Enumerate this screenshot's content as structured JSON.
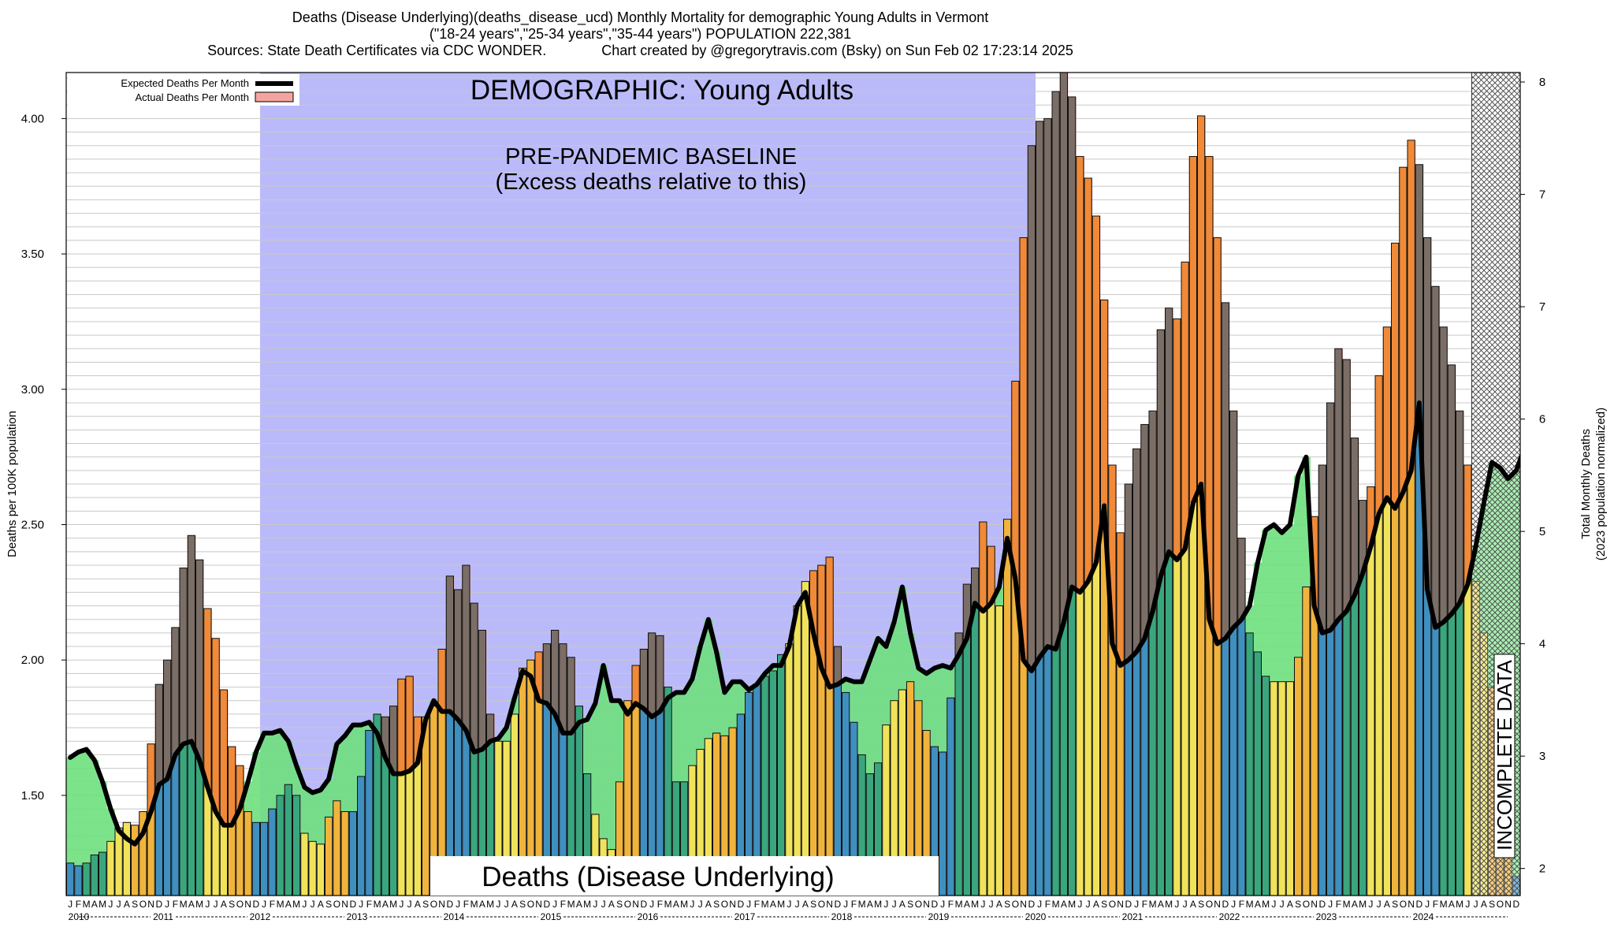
{
  "chart_data": {
    "type": "bar",
    "title": "Deaths (Disease Underlying)(deaths_disease_ucd) Monthly Mortality for demographic Young Adults in Vermont",
    "subtitle": "(\"18-24 years\",\"25-34 years\",\"35-44 years\") POPULATION 222,381",
    "sources": "Sources: State Death Certificates via CDC WONDER.",
    "credit": "Chart created by @gregorytravis.com (Bsky) on Sun Feb 02 17:23:14 2025",
    "ylabel": "Deaths per 100K population",
    "ylabel_right_line1": "Total Monthly Deaths",
    "ylabel_right_line2": "(2023 population normalized)",
    "ylim": [
      1.13,
      4.17
    ],
    "y_ticks": [
      "1.50",
      "2.00",
      "2.50",
      "3.00",
      "3.50",
      "4.00"
    ],
    "y_tick_values": [
      1.5,
      2.0,
      2.5,
      3.0,
      3.5,
      4.0
    ],
    "y_right_ticks": [
      "2",
      "3",
      "4",
      "5",
      "6",
      "7",
      "7",
      "8"
    ],
    "y_right_tick_values": [
      1.23,
      1.645,
      2.06,
      2.475,
      2.89,
      3.305,
      3.72,
      4.135
    ],
    "legend": {
      "placement": "top-left",
      "expected": "Expected Deaths Per Month",
      "actual": "Actual Deaths Per Month"
    },
    "annotations": {
      "demographic": "DEMOGRAPHIC: Young Adults",
      "baseline_line1": "PRE-PANDEMIC BASELINE",
      "baseline_line2": "(Excess deaths relative to this)",
      "bottom_label": "Deaths (Disease Underlying)",
      "incomplete": "INCOMPLETE DATA"
    },
    "month_letters": [
      "J",
      "F",
      "M",
      "A",
      "M",
      "J",
      "J",
      "A",
      "S",
      "O",
      "N",
      "D"
    ],
    "years": [
      "2010",
      "2011",
      "2012",
      "2013",
      "2014",
      "2015",
      "2016",
      "2017",
      "2018",
      "2019",
      "2020",
      "2021",
      "2022",
      "2023",
      "2024"
    ],
    "baseline_years": [
      "2012",
      "2019"
    ],
    "incomplete_from": "2024-07",
    "actual": [
      1.25,
      1.24,
      1.25,
      1.28,
      1.29,
      1.33,
      1.38,
      1.4,
      1.39,
      1.44,
      1.69,
      1.91,
      2.0,
      2.12,
      2.34,
      2.46,
      2.37,
      2.19,
      2.08,
      1.89,
      1.68,
      1.61,
      1.44,
      1.4,
      1.4,
      1.45,
      1.5,
      1.54,
      1.5,
      1.36,
      1.33,
      1.32,
      1.42,
      1.48,
      1.44,
      1.44,
      1.57,
      1.74,
      1.8,
      1.79,
      1.83,
      1.93,
      1.94,
      1.79,
      1.79,
      1.83,
      2.04,
      2.31,
      2.26,
      2.35,
      2.21,
      2.11,
      1.8,
      1.7,
      1.7,
      1.8,
      1.97,
      2.0,
      2.03,
      2.06,
      2.11,
      2.06,
      2.01,
      1.83,
      1.58,
      1.43,
      1.34,
      1.3,
      1.55,
      1.85,
      1.98,
      2.04,
      2.1,
      2.09,
      1.9,
      1.55,
      1.55,
      1.61,
      1.67,
      1.71,
      1.73,
      1.72,
      1.75,
      1.8,
      1.88,
      1.91,
      1.94,
      1.96,
      2.02,
      2.06,
      2.2,
      2.29,
      2.33,
      2.35,
      2.38,
      2.05,
      1.88,
      1.77,
      1.65,
      1.58,
      1.62,
      1.76,
      1.85,
      1.89,
      1.92,
      1.85,
      1.74,
      1.68,
      1.66,
      1.86,
      2.1,
      2.28,
      2.34,
      2.51,
      2.42,
      2.2,
      2.52,
      3.03,
      3.56,
      3.9,
      3.99,
      4.0,
      4.1,
      4.18,
      4.08,
      3.86,
      3.78,
      3.64,
      3.33,
      2.72,
      2.47,
      2.65,
      2.78,
      2.87,
      2.92,
      3.22,
      3.3,
      3.26,
      3.47,
      3.86,
      4.01,
      3.86,
      3.56,
      3.32,
      2.92,
      2.45,
      2.1,
      2.03,
      1.94,
      1.92,
      1.92,
      1.92,
      2.01,
      2.27,
      2.53,
      2.72,
      2.95,
      3.15,
      3.11,
      2.82,
      2.59,
      2.64,
      3.05,
      3.23,
      3.54,
      3.82,
      3.92,
      3.83,
      3.56,
      3.38,
      3.23,
      3.09,
      2.92,
      2.72,
      2.29,
      2.1,
      1.9,
      1.68,
      1.43,
      1.2
    ],
    "expected": [
      1.64,
      1.66,
      1.67,
      1.63,
      1.55,
      1.45,
      1.37,
      1.34,
      1.32,
      1.36,
      1.44,
      1.54,
      1.56,
      1.65,
      1.69,
      1.7,
      1.63,
      1.53,
      1.44,
      1.39,
      1.39,
      1.45,
      1.55,
      1.66,
      1.73,
      1.73,
      1.74,
      1.7,
      1.61,
      1.53,
      1.51,
      1.52,
      1.56,
      1.69,
      1.72,
      1.76,
      1.76,
      1.77,
      1.73,
      1.64,
      1.58,
      1.58,
      1.59,
      1.62,
      1.78,
      1.85,
      1.81,
      1.81,
      1.78,
      1.74,
      1.66,
      1.67,
      1.7,
      1.71,
      1.75,
      1.86,
      1.96,
      1.94,
      1.85,
      1.84,
      1.8,
      1.73,
      1.73,
      1.77,
      1.78,
      1.84,
      1.98,
      1.85,
      1.85,
      1.8,
      1.84,
      1.82,
      1.79,
      1.81,
      1.86,
      1.88,
      1.88,
      1.93,
      2.05,
      2.15,
      2.03,
      1.88,
      1.92,
      1.92,
      1.89,
      1.91,
      1.95,
      1.98,
      1.98,
      2.05,
      2.2,
      2.25,
      2.1,
      1.97,
      1.9,
      1.91,
      1.93,
      1.92,
      1.92,
      2.0,
      2.08,
      2.05,
      2.14,
      2.27,
      2.1,
      1.97,
      1.95,
      1.97,
      1.98,
      1.97,
      2.02,
      2.08,
      2.21,
      2.18,
      2.21,
      2.27,
      2.45,
      2.3,
      2.0,
      1.96,
      2.01,
      2.05,
      2.04,
      2.14,
      2.27,
      2.25,
      2.29,
      2.36,
      2.57,
      2.06,
      1.98,
      2.0,
      2.03,
      2.08,
      2.18,
      2.31,
      2.4,
      2.37,
      2.41,
      2.58,
      2.65,
      2.15,
      2.06,
      2.08,
      2.12,
      2.15,
      2.2,
      2.36,
      2.48,
      2.5,
      2.47,
      2.5,
      2.68,
      2.75,
      2.2,
      2.1,
      2.11,
      2.15,
      2.18,
      2.24,
      2.32,
      2.42,
      2.54,
      2.6,
      2.56,
      2.62,
      2.7,
      2.95,
      2.26,
      2.12,
      2.14,
      2.17,
      2.21,
      2.28,
      2.42,
      2.58,
      2.73,
      2.71,
      2.67,
      2.7,
      2.78,
      3.02
    ],
    "bar_colors": {
      "winter": "#3f8fbf",
      "spring": "#3aa67d",
      "summer": "#f0e35a",
      "fall": "#f0b43c",
      "peak_orange": "#f08a38",
      "peak_gray": "#7a6e66"
    },
    "fill_colors": {
      "excess": "#f4a4a0",
      "deficit": "#6fe07e",
      "baseline": "#babafb"
    },
    "grid": true
  }
}
